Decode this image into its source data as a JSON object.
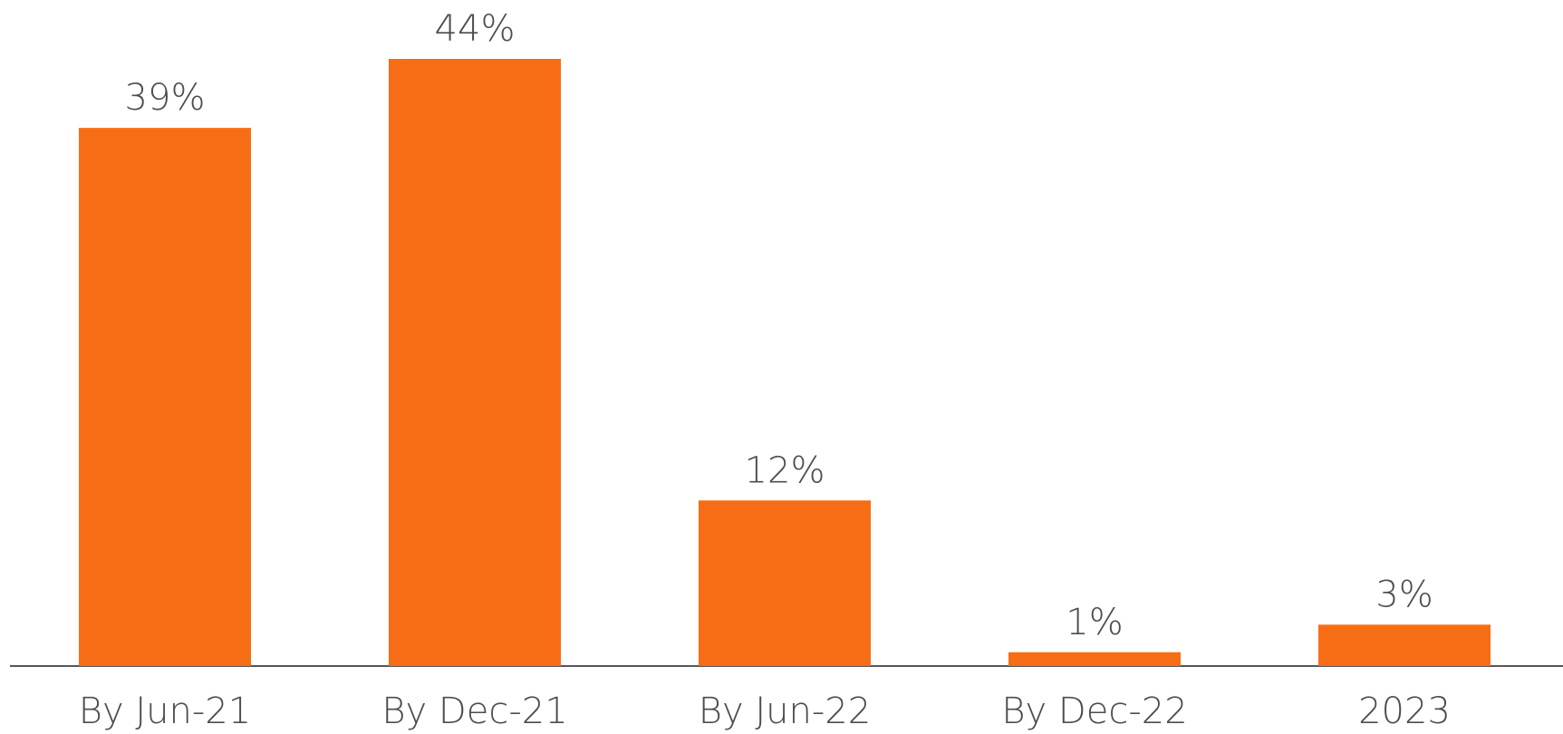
{
  "chart_data": {
    "type": "bar",
    "categories": [
      "By Jun-21",
      "By Dec-21",
      "By Jun-22",
      "By Dec-22",
      "2023"
    ],
    "values": [
      39,
      44,
      12,
      1,
      3
    ],
    "value_labels": [
      "39%",
      "44%",
      "12%",
      "1%",
      "3%"
    ],
    "color": "#f76d15"
  }
}
